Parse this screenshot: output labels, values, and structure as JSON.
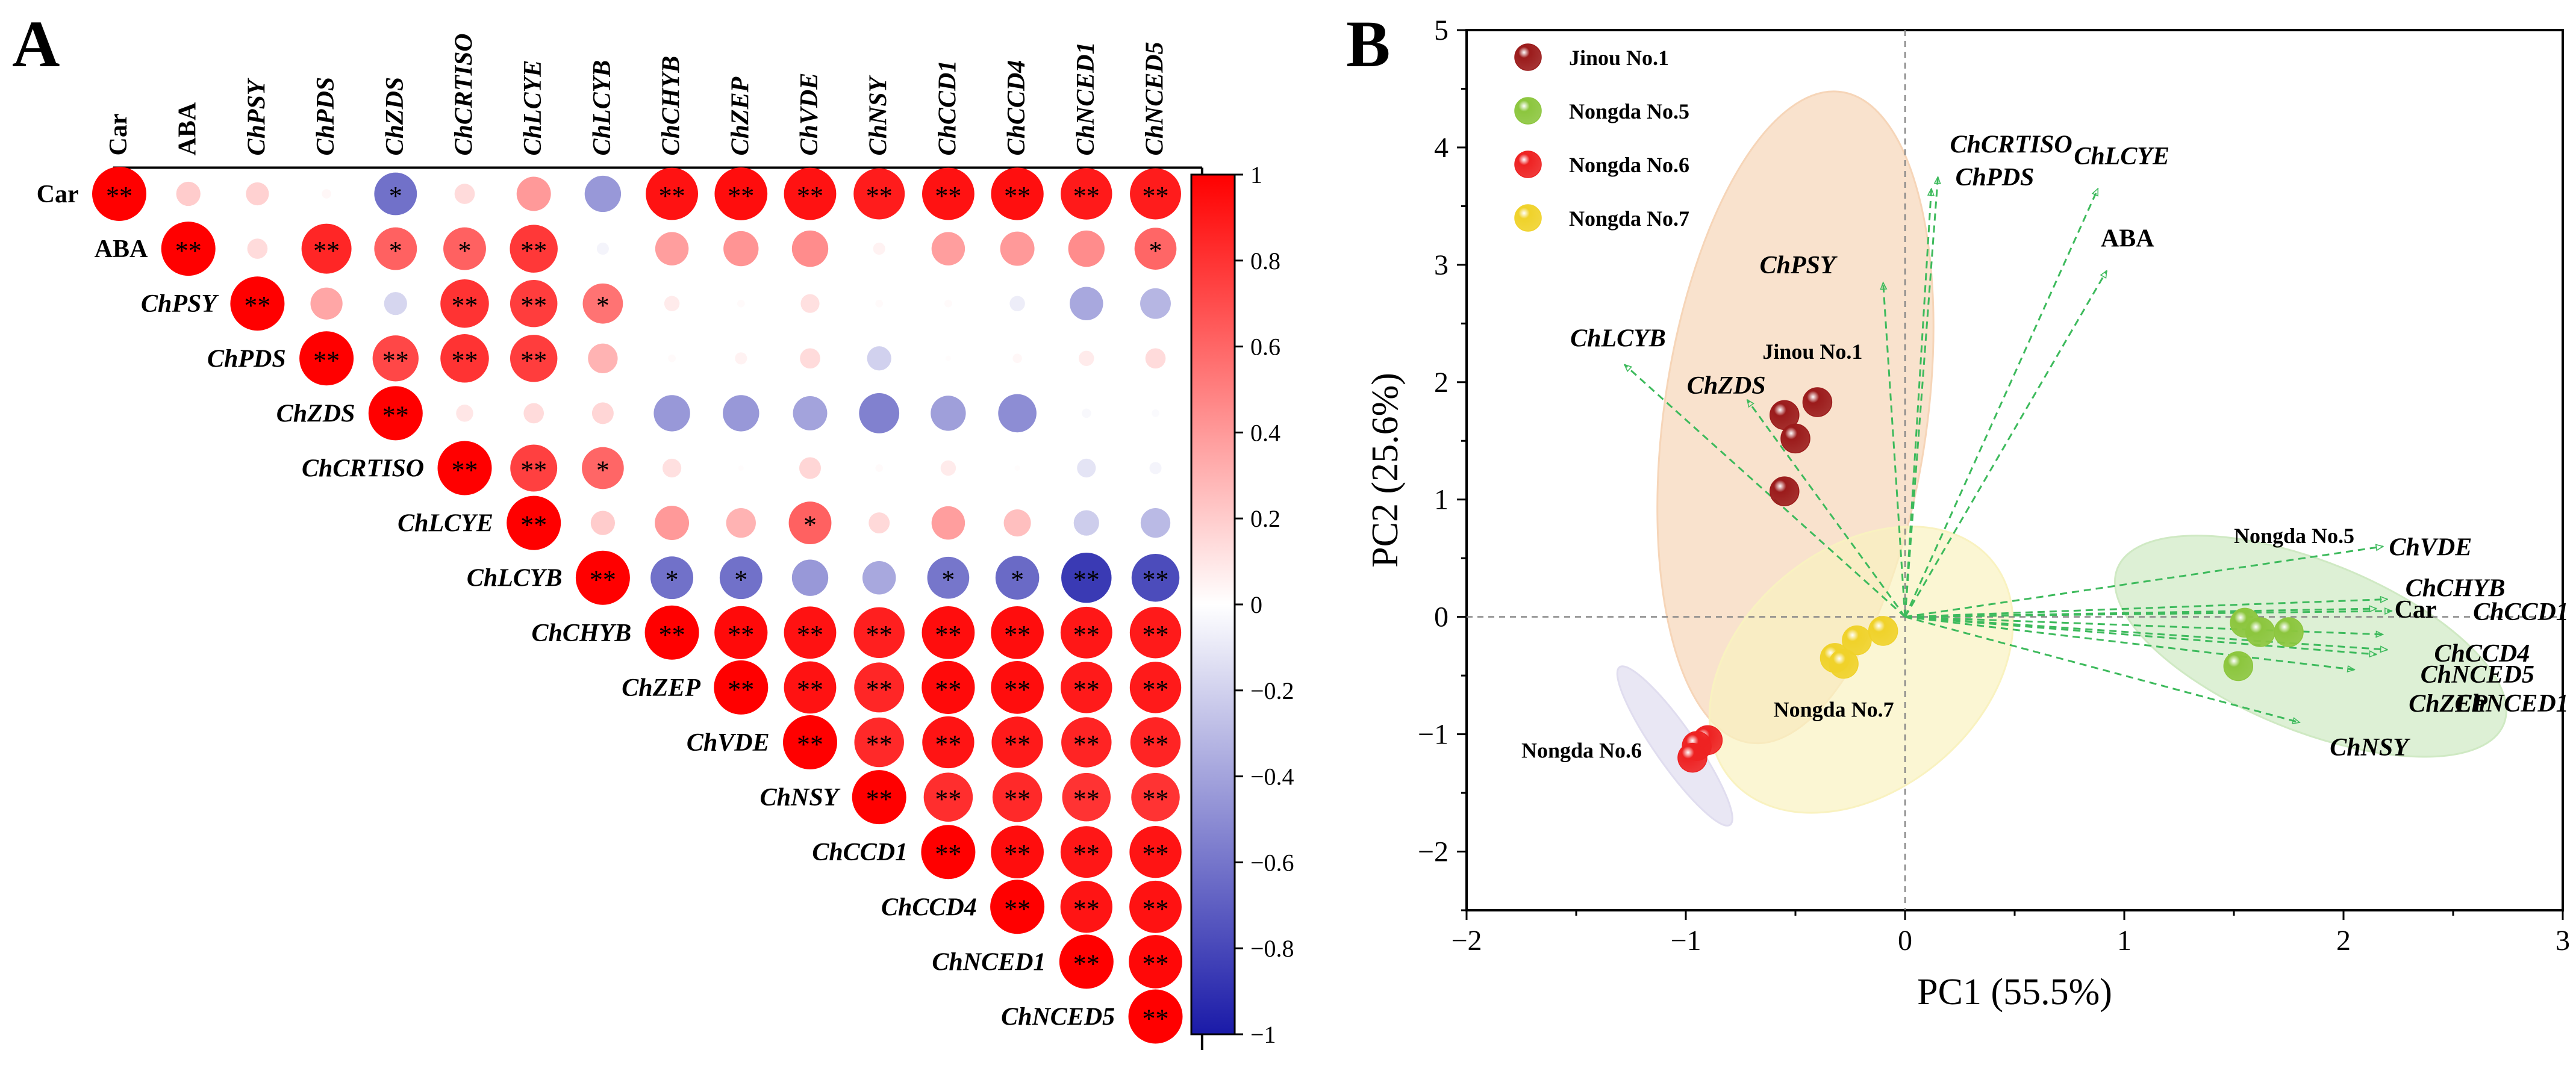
{
  "panels": {
    "a_label": "A",
    "b_label": "B"
  },
  "chart_data": [
    {
      "type": "heatmap",
      "title": "",
      "variables": [
        "Car",
        "ABA",
        "ChPSY",
        "ChPDS",
        "ChZDS",
        "ChCRTISO",
        "ChLCYE",
        "ChLCYB",
        "ChCHYB",
        "ChZEP",
        "ChVDE",
        "ChNSY",
        "ChCCD1",
        "ChCCD4",
        "ChNCED1",
        "ChNCED5"
      ],
      "colorbar": {
        "range": [
          -1,
          1
        ],
        "ticks": [
          "1",
          "0.8",
          "0.6",
          "0.4",
          "0.2",
          "0",
          "−0.2",
          "−0.4",
          "−0.6",
          "−0.8",
          "−1"
        ],
        "low_color": "#1a1aa8",
        "mid_color": "#ffffff",
        "high_color": "#ff0000"
      },
      "cells": [
        {
          "r": 0,
          "c": 0,
          "v": 1.0,
          "s": "**"
        },
        {
          "r": 0,
          "c": 1,
          "v": 0.2,
          "s": ""
        },
        {
          "r": 0,
          "c": 2,
          "v": 0.18,
          "s": ""
        },
        {
          "r": 0,
          "c": 3,
          "v": 0.03,
          "s": ""
        },
        {
          "r": 0,
          "c": 4,
          "v": -0.62,
          "s": "*"
        },
        {
          "r": 0,
          "c": 5,
          "v": 0.14,
          "s": ""
        },
        {
          "r": 0,
          "c": 6,
          "v": 0.4,
          "s": ""
        },
        {
          "r": 0,
          "c": 7,
          "v": -0.45,
          "s": ""
        },
        {
          "r": 0,
          "c": 8,
          "v": 0.93,
          "s": "**"
        },
        {
          "r": 0,
          "c": 9,
          "v": 0.95,
          "s": "**"
        },
        {
          "r": 0,
          "c": 10,
          "v": 0.93,
          "s": "**"
        },
        {
          "r": 0,
          "c": 11,
          "v": 0.89,
          "s": "**"
        },
        {
          "r": 0,
          "c": 12,
          "v": 0.93,
          "s": "**"
        },
        {
          "r": 0,
          "c": 13,
          "v": 0.94,
          "s": "**"
        },
        {
          "r": 0,
          "c": 14,
          "v": 0.9,
          "s": "**"
        },
        {
          "r": 0,
          "c": 15,
          "v": 0.89,
          "s": "**"
        },
        {
          "r": 1,
          "c": 1,
          "v": 1.0,
          "s": "**"
        },
        {
          "r": 1,
          "c": 2,
          "v": 0.14,
          "s": ""
        },
        {
          "r": 1,
          "c": 3,
          "v": 0.85,
          "s": "**"
        },
        {
          "r": 1,
          "c": 4,
          "v": 0.62,
          "s": "*"
        },
        {
          "r": 1,
          "c": 5,
          "v": 0.62,
          "s": "*"
        },
        {
          "r": 1,
          "c": 6,
          "v": 0.78,
          "s": "**"
        },
        {
          "r": 1,
          "c": 7,
          "v": -0.05,
          "s": ""
        },
        {
          "r": 1,
          "c": 8,
          "v": 0.38,
          "s": ""
        },
        {
          "r": 1,
          "c": 9,
          "v": 0.42,
          "s": ""
        },
        {
          "r": 1,
          "c": 10,
          "v": 0.45,
          "s": ""
        },
        {
          "r": 1,
          "c": 11,
          "v": 0.05,
          "s": ""
        },
        {
          "r": 1,
          "c": 12,
          "v": 0.38,
          "s": ""
        },
        {
          "r": 1,
          "c": 13,
          "v": 0.4,
          "s": ""
        },
        {
          "r": 1,
          "c": 14,
          "v": 0.45,
          "s": ""
        },
        {
          "r": 1,
          "c": 15,
          "v": 0.6,
          "s": "*"
        },
        {
          "r": 2,
          "c": 2,
          "v": 1.0,
          "s": "**"
        },
        {
          "r": 2,
          "c": 3,
          "v": 0.35,
          "s": ""
        },
        {
          "r": 2,
          "c": 4,
          "v": -0.18,
          "s": ""
        },
        {
          "r": 2,
          "c": 5,
          "v": 0.8,
          "s": "**"
        },
        {
          "r": 2,
          "c": 6,
          "v": 0.76,
          "s": "**"
        },
        {
          "r": 2,
          "c": 7,
          "v": 0.55,
          "s": "*"
        },
        {
          "r": 2,
          "c": 8,
          "v": 0.08,
          "s": ""
        },
        {
          "r": 2,
          "c": 9,
          "v": 0.02,
          "s": ""
        },
        {
          "r": 2,
          "c": 10,
          "v": 0.12,
          "s": ""
        },
        {
          "r": 2,
          "c": 11,
          "v": 0.02,
          "s": ""
        },
        {
          "r": 2,
          "c": 12,
          "v": 0.02,
          "s": ""
        },
        {
          "r": 2,
          "c": 13,
          "v": -0.08,
          "s": ""
        },
        {
          "r": 2,
          "c": 14,
          "v": -0.38,
          "s": ""
        },
        {
          "r": 2,
          "c": 15,
          "v": -0.32,
          "s": ""
        },
        {
          "r": 3,
          "c": 3,
          "v": 1.0,
          "s": "**"
        },
        {
          "r": 3,
          "c": 4,
          "v": 0.72,
          "s": "**"
        },
        {
          "r": 3,
          "c": 5,
          "v": 0.8,
          "s": "**"
        },
        {
          "r": 3,
          "c": 6,
          "v": 0.76,
          "s": "**"
        },
        {
          "r": 3,
          "c": 7,
          "v": 0.3,
          "s": ""
        },
        {
          "r": 3,
          "c": 8,
          "v": 0.02,
          "s": ""
        },
        {
          "r": 3,
          "c": 9,
          "v": 0.05,
          "s": ""
        },
        {
          "r": 3,
          "c": 10,
          "v": 0.14,
          "s": ""
        },
        {
          "r": 3,
          "c": 11,
          "v": -0.2,
          "s": ""
        },
        {
          "r": 3,
          "c": 12,
          "v": 0.01,
          "s": ""
        },
        {
          "r": 3,
          "c": 13,
          "v": 0.03,
          "s": ""
        },
        {
          "r": 3,
          "c": 14,
          "v": 0.08,
          "s": ""
        },
        {
          "r": 3,
          "c": 15,
          "v": 0.14,
          "s": ""
        },
        {
          "r": 4,
          "c": 4,
          "v": 1.0,
          "s": "**"
        },
        {
          "r": 4,
          "c": 5,
          "v": 0.1,
          "s": ""
        },
        {
          "r": 4,
          "c": 6,
          "v": 0.14,
          "s": ""
        },
        {
          "r": 4,
          "c": 7,
          "v": 0.16,
          "s": ""
        },
        {
          "r": 4,
          "c": 8,
          "v": -0.45,
          "s": ""
        },
        {
          "r": 4,
          "c": 9,
          "v": -0.45,
          "s": ""
        },
        {
          "r": 4,
          "c": 10,
          "v": -0.4,
          "s": ""
        },
        {
          "r": 4,
          "c": 11,
          "v": -0.55,
          "s": ""
        },
        {
          "r": 4,
          "c": 12,
          "v": -0.42,
          "s": ""
        },
        {
          "r": 4,
          "c": 13,
          "v": -0.5,
          "s": ""
        },
        {
          "r": 4,
          "c": 14,
          "v": -0.03,
          "s": ""
        },
        {
          "r": 4,
          "c": 15,
          "v": -0.02,
          "s": ""
        },
        {
          "r": 5,
          "c": 5,
          "v": 1.0,
          "s": "**"
        },
        {
          "r": 5,
          "c": 6,
          "v": 0.75,
          "s": "**"
        },
        {
          "r": 5,
          "c": 7,
          "v": 0.6,
          "s": "*"
        },
        {
          "r": 5,
          "c": 8,
          "v": 0.12,
          "s": ""
        },
        {
          "r": 5,
          "c": 9,
          "v": 0.01,
          "s": ""
        },
        {
          "r": 5,
          "c": 10,
          "v": 0.16,
          "s": ""
        },
        {
          "r": 5,
          "c": 11,
          "v": 0.02,
          "s": ""
        },
        {
          "r": 5,
          "c": 12,
          "v": 0.08,
          "s": ""
        },
        {
          "r": 5,
          "c": 13,
          "v": 0.01,
          "s": ""
        },
        {
          "r": 5,
          "c": 14,
          "v": -0.12,
          "s": ""
        },
        {
          "r": 5,
          "c": 15,
          "v": -0.05,
          "s": ""
        },
        {
          "r": 6,
          "c": 6,
          "v": 1.0,
          "s": "**"
        },
        {
          "r": 6,
          "c": 7,
          "v": 0.2,
          "s": ""
        },
        {
          "r": 6,
          "c": 8,
          "v": 0.4,
          "s": ""
        },
        {
          "r": 6,
          "c": 9,
          "v": 0.3,
          "s": ""
        },
        {
          "r": 6,
          "c": 10,
          "v": 0.62,
          "s": "*"
        },
        {
          "r": 6,
          "c": 11,
          "v": 0.15,
          "s": ""
        },
        {
          "r": 6,
          "c": 12,
          "v": 0.38,
          "s": ""
        },
        {
          "r": 6,
          "c": 13,
          "v": 0.25,
          "s": ""
        },
        {
          "r": 6,
          "c": 14,
          "v": -0.22,
          "s": ""
        },
        {
          "r": 6,
          "c": 15,
          "v": -0.3,
          "s": ""
        },
        {
          "r": 7,
          "c": 7,
          "v": 1.0,
          "s": "**"
        },
        {
          "r": 7,
          "c": 8,
          "v": -0.62,
          "s": "*"
        },
        {
          "r": 7,
          "c": 9,
          "v": -0.62,
          "s": "*"
        },
        {
          "r": 7,
          "c": 10,
          "v": -0.45,
          "s": ""
        },
        {
          "r": 7,
          "c": 11,
          "v": -0.38,
          "s": ""
        },
        {
          "r": 7,
          "c": 12,
          "v": -0.6,
          "s": "*"
        },
        {
          "r": 7,
          "c": 13,
          "v": -0.65,
          "s": "*"
        },
        {
          "r": 7,
          "c": 14,
          "v": -0.86,
          "s": "**"
        },
        {
          "r": 7,
          "c": 15,
          "v": -0.78,
          "s": "**"
        },
        {
          "r": 8,
          "c": 8,
          "v": 1.0,
          "s": "**"
        },
        {
          "r": 8,
          "c": 9,
          "v": 0.96,
          "s": "**"
        },
        {
          "r": 8,
          "c": 10,
          "v": 0.93,
          "s": "**"
        },
        {
          "r": 8,
          "c": 11,
          "v": 0.88,
          "s": "**"
        },
        {
          "r": 8,
          "c": 12,
          "v": 0.95,
          "s": "**"
        },
        {
          "r": 8,
          "c": 13,
          "v": 0.95,
          "s": "**"
        },
        {
          "r": 8,
          "c": 14,
          "v": 0.91,
          "s": "**"
        },
        {
          "r": 8,
          "c": 15,
          "v": 0.9,
          "s": "**"
        },
        {
          "r": 9,
          "c": 9,
          "v": 1.0,
          "s": "**"
        },
        {
          "r": 9,
          "c": 10,
          "v": 0.93,
          "s": "**"
        },
        {
          "r": 9,
          "c": 11,
          "v": 0.85,
          "s": "**"
        },
        {
          "r": 9,
          "c": 12,
          "v": 0.96,
          "s": "**"
        },
        {
          "r": 9,
          "c": 13,
          "v": 0.95,
          "s": "**"
        },
        {
          "r": 9,
          "c": 14,
          "v": 0.9,
          "s": "**"
        },
        {
          "r": 9,
          "c": 15,
          "v": 0.9,
          "s": "**"
        },
        {
          "r": 10,
          "c": 10,
          "v": 1.0,
          "s": "**"
        },
        {
          "r": 10,
          "c": 11,
          "v": 0.84,
          "s": "**"
        },
        {
          "r": 10,
          "c": 12,
          "v": 0.92,
          "s": "**"
        },
        {
          "r": 10,
          "c": 13,
          "v": 0.9,
          "s": "**"
        },
        {
          "r": 10,
          "c": 14,
          "v": 0.86,
          "s": "**"
        },
        {
          "r": 10,
          "c": 15,
          "v": 0.86,
          "s": "**"
        },
        {
          "r": 11,
          "c": 11,
          "v": 1.0,
          "s": "**"
        },
        {
          "r": 11,
          "c": 12,
          "v": 0.82,
          "s": "**"
        },
        {
          "r": 11,
          "c": 13,
          "v": 0.84,
          "s": "**"
        },
        {
          "r": 11,
          "c": 14,
          "v": 0.8,
          "s": "**"
        },
        {
          "r": 11,
          "c": 15,
          "v": 0.8,
          "s": "**"
        },
        {
          "r": 12,
          "c": 12,
          "v": 1.0,
          "s": "**"
        },
        {
          "r": 12,
          "c": 13,
          "v": 0.95,
          "s": "**"
        },
        {
          "r": 12,
          "c": 14,
          "v": 0.91,
          "s": "**"
        },
        {
          "r": 12,
          "c": 15,
          "v": 0.92,
          "s": "**"
        },
        {
          "r": 13,
          "c": 13,
          "v": 1.0,
          "s": "**"
        },
        {
          "r": 13,
          "c": 14,
          "v": 0.92,
          "s": "**"
        },
        {
          "r": 13,
          "c": 15,
          "v": 0.93,
          "s": "**"
        },
        {
          "r": 14,
          "c": 14,
          "v": 1.0,
          "s": "**"
        },
        {
          "r": 14,
          "c": 15,
          "v": 0.97,
          "s": "**"
        },
        {
          "r": 15,
          "c": 15,
          "v": 1.0,
          "s": "**"
        }
      ]
    },
    {
      "type": "scatter",
      "title": "",
      "xlabel": "PC1 (55.5%)",
      "ylabel": "PC2 (25.6%)",
      "xlim": [
        -2,
        3
      ],
      "ylim": [
        -2.5,
        5
      ],
      "xticks": [
        -2,
        -1,
        0,
        1,
        2,
        3
      ],
      "yticks": [
        -2,
        -1,
        0,
        1,
        2,
        3,
        4,
        5
      ],
      "xtick_labels": [
        "−2",
        "−1",
        "0",
        "1",
        "2",
        "3"
      ],
      "ytick_labels": [
        "−2",
        "−1",
        "0",
        "1",
        "2",
        "3",
        "4",
        "5"
      ],
      "legend_position": "top-left",
      "series": [
        {
          "name": "Jinou No.1",
          "color": "#9b1b1b",
          "points": [
            [
              -0.55,
              1.72
            ],
            [
              -0.4,
              1.83
            ],
            [
              -0.5,
              1.52
            ],
            [
              -0.55,
              1.07
            ]
          ],
          "ellipse": {
            "cx": -0.5,
            "cy": 1.7,
            "rx": 0.6,
            "ry": 2.8,
            "angle_deg": 8,
            "color": "#f6d5b8"
          },
          "label": "Jinou No.1"
        },
        {
          "name": "Nongda No.5",
          "color": "#8cc63e",
          "points": [
            [
              1.55,
              -0.05
            ],
            [
              1.62,
              -0.13
            ],
            [
              1.75,
              -0.13
            ],
            [
              1.52,
              -0.42
            ]
          ],
          "ellipse": {
            "cx": 1.85,
            "cy": -0.25,
            "rx": 0.95,
            "ry": 0.72,
            "angle_deg": 22,
            "color": "#cfe9c3"
          },
          "label": "Nongda No.5"
        },
        {
          "name": "Nongda No.6",
          "color": "#ee2222",
          "points": [
            [
              -0.9,
              -1.05
            ],
            [
              -0.95,
              -1.1
            ],
            [
              -0.97,
              -1.2
            ]
          ],
          "ellipse": {
            "cx": -1.05,
            "cy": -1.1,
            "rx": 0.09,
            "ry": 0.82,
            "angle_deg": -35,
            "color": "#e0ddef"
          },
          "label": "Nongda No.6"
        },
        {
          "name": "Nongda No.7",
          "color": "#f0d22a",
          "points": [
            [
              -0.1,
              -0.12
            ],
            [
              -0.22,
              -0.2
            ],
            [
              -0.32,
              -0.35
            ],
            [
              -0.28,
              -0.4
            ]
          ],
          "ellipse": {
            "cx": -0.2,
            "cy": -0.45,
            "rx": 0.55,
            "ry": 1.45,
            "angle_deg": 50,
            "color": "#f9f2c0"
          },
          "label": "Nongda No.7"
        }
      ],
      "loadings": [
        {
          "name": "ChCRTISO",
          "x": 0.15,
          "y": 3.75
        },
        {
          "name": "ChPDS",
          "x": 0.12,
          "y": 3.65
        },
        {
          "name": "ChLCYE",
          "x": 0.88,
          "y": 3.65
        },
        {
          "name": "ABA",
          "x": 0.92,
          "y": 2.95
        },
        {
          "name": "ChPSY",
          "x": -0.1,
          "y": 2.85
        },
        {
          "name": "ChLCYB",
          "x": -1.28,
          "y": 2.15
        },
        {
          "name": "ChZDS",
          "x": -0.72,
          "y": 1.85
        },
        {
          "name": "ChVDE",
          "x": 2.18,
          "y": 0.6
        },
        {
          "name": "ChCHYB",
          "x": 2.2,
          "y": 0.15
        },
        {
          "name": "Car",
          "x": 2.15,
          "y": 0.07
        },
        {
          "name": "ChCCD1",
          "x": 2.22,
          "y": 0.05
        },
        {
          "name": "ChCCD4",
          "x": 2.18,
          "y": -0.15
        },
        {
          "name": "ChNCED5",
          "x": 2.2,
          "y": -0.28
        },
        {
          "name": "ChZEP",
          "x": 2.05,
          "y": -0.45
        },
        {
          "name": "ChNCED1",
          "x": 2.15,
          "y": -0.32
        },
        {
          "name": "ChNSY",
          "x": 1.8,
          "y": -0.9
        }
      ]
    }
  ]
}
